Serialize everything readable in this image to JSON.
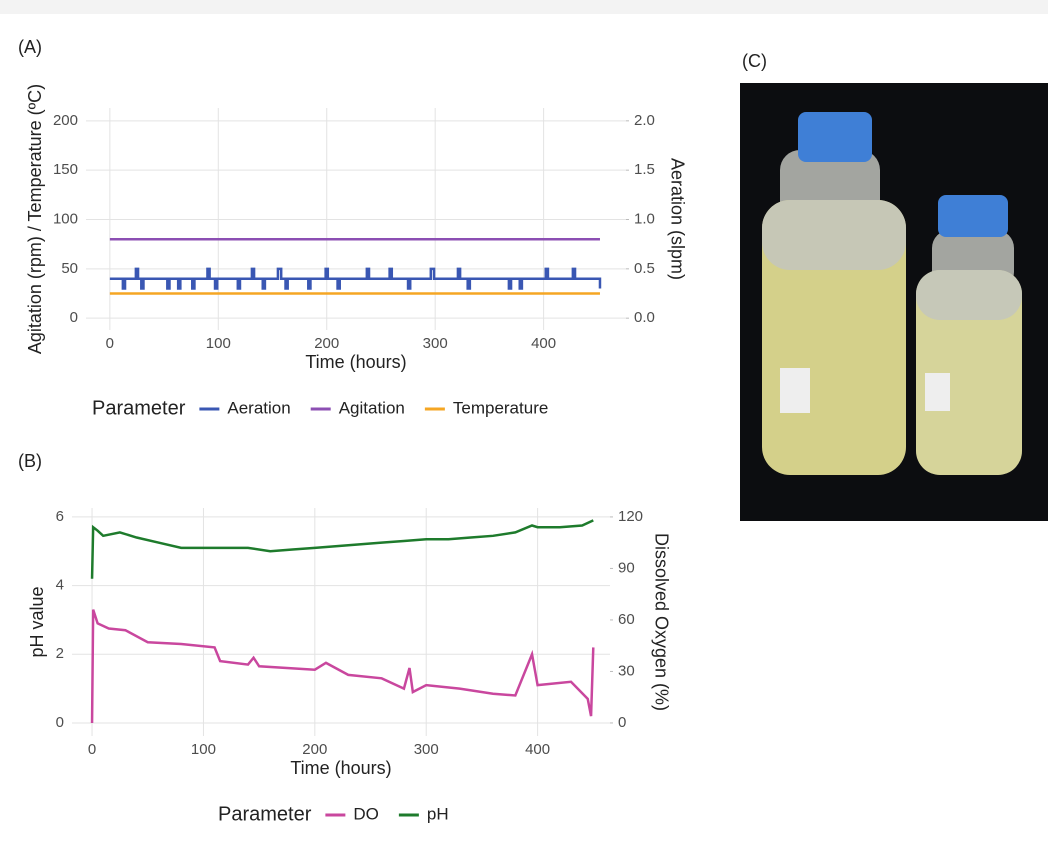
{
  "panel_labels": [
    "(A)",
    "(B)",
    "(C)"
  ],
  "chart_data": [
    {
      "type": "line",
      "xlabel": "Time (hours)",
      "ylabel": "Agitation (rpm) / Temperature (ºC)",
      "y2label": "Aeration (slpm)",
      "xlim": [
        -22,
        476
      ],
      "xticks": [
        0,
        100,
        200,
        300,
        400
      ],
      "ylim": [
        -12,
        213
      ],
      "yticks": [
        0,
        50,
        100,
        150,
        200
      ],
      "y2lim": [
        -0.12,
        2.13
      ],
      "y2ticks": [
        {
          "value": 0,
          "label": "0.0"
        },
        {
          "value": 0.5,
          "label": "0.5"
        },
        {
          "value": 1,
          "label": "1.0"
        },
        {
          "value": 1.5,
          "label": "1.5"
        },
        {
          "value": 2,
          "label": "2.0"
        }
      ],
      "grid": true,
      "legend": "bottom",
      "legend_title": "Parameter",
      "series": [
        {
          "name": "Aeration",
          "color": "#3a57b3",
          "axis": "y2",
          "x": [
            0,
            12,
            12,
            14,
            14,
            24,
            24,
            26,
            26,
            29,
            29,
            31,
            31,
            53,
            53,
            55,
            55,
            63,
            63,
            65,
            65,
            76,
            76,
            78,
            78,
            90,
            90,
            92,
            92,
            97,
            97,
            99,
            99,
            118,
            118,
            120,
            120,
            131,
            131,
            133,
            133,
            141,
            141,
            143,
            143,
            155,
            155,
            158,
            158,
            162,
            162,
            164,
            164,
            183,
            183,
            185,
            185,
            199,
            199,
            201,
            201,
            210,
            210,
            212,
            212,
            237,
            237,
            239,
            239,
            258,
            258,
            260,
            260,
            275,
            275,
            277,
            277,
            296,
            296,
            299,
            299,
            321,
            321,
            323,
            323,
            330,
            330,
            332,
            332,
            368,
            368,
            370,
            370,
            378,
            378,
            380,
            380,
            402,
            402,
            404,
            404,
            427,
            427,
            429,
            429,
            452,
            452
          ],
          "values": [
            0.4,
            0.4,
            0.3,
            0.3,
            0.4,
            0.4,
            0.5,
            0.5,
            0.4,
            0.4,
            0.3,
            0.3,
            0.4,
            0.4,
            0.3,
            0.3,
            0.4,
            0.4,
            0.3,
            0.3,
            0.4,
            0.4,
            0.3,
            0.3,
            0.4,
            0.4,
            0.5,
            0.5,
            0.4,
            0.4,
            0.3,
            0.3,
            0.4,
            0.4,
            0.3,
            0.3,
            0.4,
            0.4,
            0.5,
            0.5,
            0.4,
            0.4,
            0.3,
            0.3,
            0.4,
            0.4,
            0.5,
            0.5,
            0.4,
            0.4,
            0.3,
            0.3,
            0.4,
            0.4,
            0.3,
            0.3,
            0.4,
            0.4,
            0.5,
            0.5,
            0.4,
            0.4,
            0.3,
            0.3,
            0.4,
            0.4,
            0.5,
            0.5,
            0.4,
            0.4,
            0.5,
            0.5,
            0.4,
            0.4,
            0.3,
            0.3,
            0.4,
            0.4,
            0.5,
            0.5,
            0.4,
            0.4,
            0.5,
            0.5,
            0.4,
            0.4,
            0.3,
            0.3,
            0.4,
            0.4,
            0.3,
            0.3,
            0.4,
            0.4,
            0.3,
            0.3,
            0.4,
            0.4,
            0.5,
            0.5,
            0.4,
            0.4,
            0.5,
            0.5,
            0.4,
            0.4,
            0.3
          ]
        },
        {
          "name": "Agitation",
          "color": "#8c4fb3",
          "x": [
            0,
            452
          ],
          "values": [
            80,
            80
          ]
        },
        {
          "name": "Temperature",
          "color": "#f5a623",
          "x": [
            0,
            452
          ],
          "values": [
            25,
            25
          ]
        }
      ]
    },
    {
      "type": "line",
      "xlabel": "Time (hours)",
      "ylabel": "pH value",
      "y2label": "Dissolved Oxygen (%)",
      "xlim": [
        -18,
        465
      ],
      "xticks": [
        0,
        100,
        200,
        300,
        400
      ],
      "ylim": [
        -0.38,
        6.26
      ],
      "yticks": [
        0,
        2,
        4,
        6
      ],
      "y2lim": [
        -7.6,
        125.2
      ],
      "y2ticks": [
        0,
        30,
        60,
        90,
        120
      ],
      "grid": true,
      "legend": "bottom",
      "legend_title": "Parameter",
      "series": [
        {
          "name": "DO",
          "color": "#c9479e",
          "axis": "y2",
          "x": [
            0,
            1,
            5,
            15,
            30,
            50,
            80,
            110,
            115,
            140,
            145,
            150,
            200,
            210,
            230,
            260,
            280,
            285,
            288,
            300,
            330,
            360,
            380,
            395,
            400,
            430,
            445,
            448,
            450
          ],
          "values": [
            0,
            66,
            58,
            55,
            54,
            47,
            46,
            44,
            36,
            34,
            38,
            33,
            31,
            35,
            28,
            26,
            20,
            32,
            18,
            22,
            20,
            17,
            16,
            40,
            22,
            24,
            14,
            4,
            44
          ]
        },
        {
          "name": "pH",
          "color": "#1e7b2c",
          "x": [
            0,
            1,
            5,
            10,
            25,
            40,
            60,
            80,
            100,
            120,
            140,
            160,
            180,
            200,
            220,
            240,
            260,
            280,
            300,
            320,
            340,
            360,
            380,
            395,
            400,
            420,
            440,
            450
          ],
          "values": [
            4.2,
            5.7,
            5.6,
            5.45,
            5.55,
            5.4,
            5.25,
            5.1,
            5.1,
            5.1,
            5.1,
            5.0,
            5.05,
            5.1,
            5.15,
            5.2,
            5.25,
            5.3,
            5.35,
            5.35,
            5.4,
            5.45,
            5.55,
            5.75,
            5.7,
            5.7,
            5.75,
            5.9
          ]
        }
      ]
    }
  ]
}
